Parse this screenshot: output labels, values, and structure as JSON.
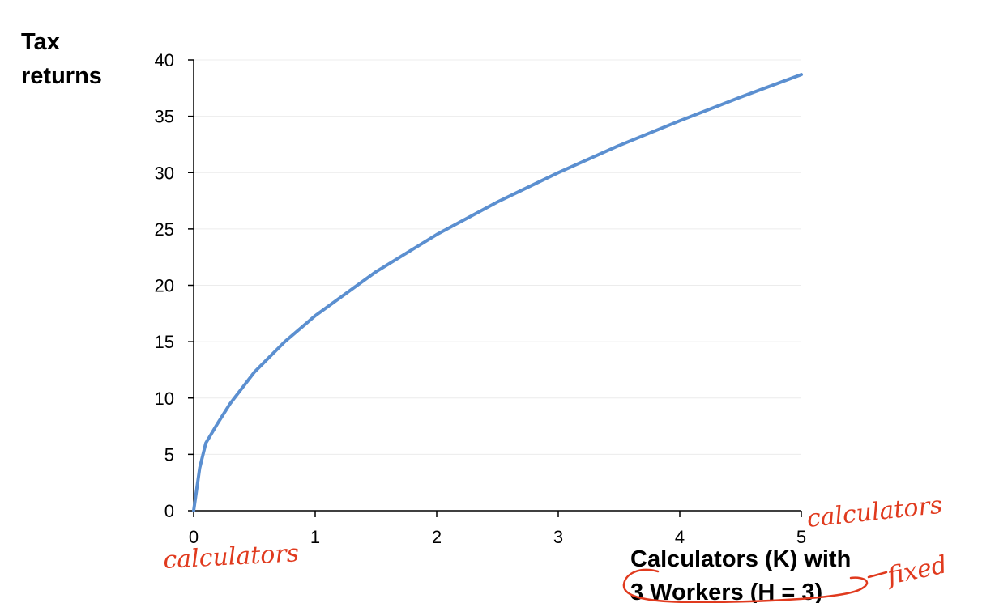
{
  "chart_data": {
    "type": "line",
    "title": "",
    "ylabel_lines": [
      "Tax",
      "returns"
    ],
    "xlabel_lines": [
      "Calculators (K) with",
      "3 Workers (H = 3)"
    ],
    "xlim": [
      0,
      5
    ],
    "ylim": [
      0,
      40
    ],
    "x_ticks": [
      0,
      1,
      2,
      3,
      4,
      5
    ],
    "y_ticks": [
      0,
      5,
      10,
      15,
      20,
      25,
      30,
      35,
      40
    ],
    "grid": true,
    "series": [
      {
        "color": "#5b8fd0",
        "x": [
          0,
          0.05,
          0.1,
          0.2,
          0.3,
          0.5,
          0.75,
          1,
          1.5,
          2,
          2.5,
          3,
          3.5,
          4,
          4.5,
          5
        ],
        "y": [
          0,
          3.8,
          6.0,
          7.8,
          9.5,
          12.3,
          15.0,
          17.3,
          21.2,
          24.5,
          27.4,
          30.0,
          32.4,
          34.6,
          36.7,
          38.7
        ]
      }
    ]
  },
  "annotations": {
    "handwritten": [
      "calculators",
      "calculators",
      "fixed"
    ],
    "color": "#e03a1e"
  }
}
